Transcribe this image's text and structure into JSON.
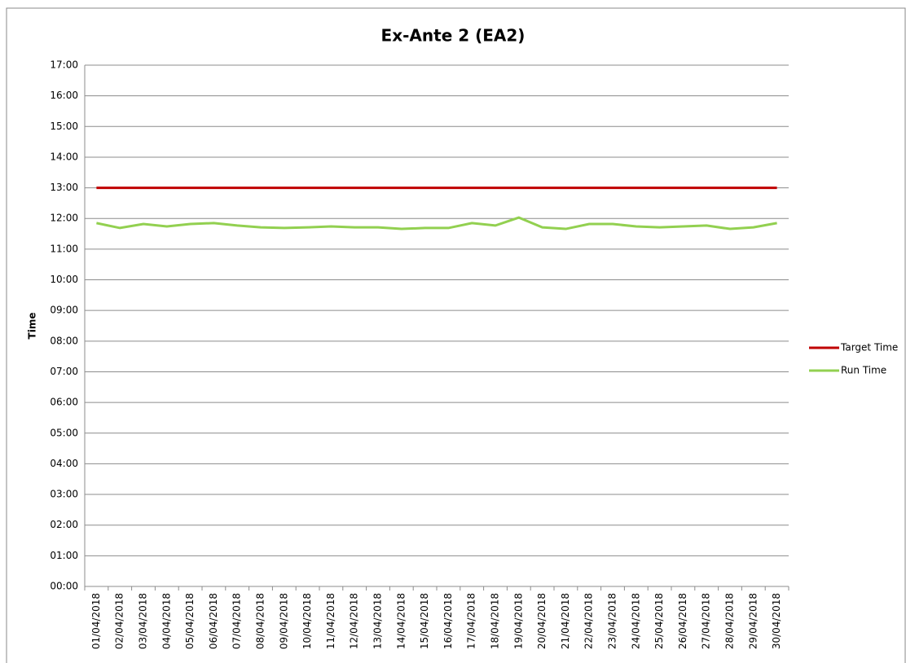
{
  "chart_data": {
    "type": "line",
    "title": "Ex-Ante 2 (EA2)",
    "y_label": "Time",
    "categories": [
      "01/04/2018",
      "02/04/2018",
      "03/04/2018",
      "04/04/2018",
      "05/04/2018",
      "06/04/2018",
      "07/04/2018",
      "08/04/2018",
      "09/04/2018",
      "10/04/2018",
      "11/04/2018",
      "12/04/2018",
      "13/04/2018",
      "14/04/2018",
      "15/04/2018",
      "16/04/2018",
      "17/04/2018",
      "18/04/2018",
      "19/04/2018",
      "20/04/2018",
      "21/04/2018",
      "22/04/2018",
      "23/04/2018",
      "24/04/2018",
      "25/04/2018",
      "26/04/2018",
      "27/04/2018",
      "28/04/2018",
      "29/04/2018",
      "30/04/2018"
    ],
    "series": [
      {
        "name": "Target Time",
        "color": "#c00000",
        "width": 3,
        "values": [
          13,
          13,
          13,
          13,
          13,
          13,
          13,
          13,
          13,
          13,
          13,
          13,
          13,
          13,
          13,
          13,
          13,
          13,
          13,
          13,
          13,
          13,
          13,
          13,
          13,
          13,
          13,
          13,
          13,
          13
        ]
      },
      {
        "name": "Run Time",
        "color": "#92d050",
        "width": 3,
        "values": [
          11.85,
          11.69,
          11.82,
          11.74,
          11.82,
          11.85,
          11.77,
          11.71,
          11.69,
          11.71,
          11.74,
          11.71,
          11.71,
          11.66,
          11.69,
          11.69,
          11.85,
          11.77,
          12.03,
          11.71,
          11.66,
          11.82,
          11.82,
          11.74,
          11.71,
          11.74,
          11.77,
          11.66,
          11.71,
          11.85
        ]
      }
    ],
    "ylim": [
      0,
      17
    ],
    "yticks": [
      {
        "value": 0,
        "label": "00:00"
      },
      {
        "value": 1,
        "label": "01:00"
      },
      {
        "value": 2,
        "label": "02:00"
      },
      {
        "value": 3,
        "label": "03:00"
      },
      {
        "value": 4,
        "label": "04:00"
      },
      {
        "value": 5,
        "label": "05:00"
      },
      {
        "value": 6,
        "label": "06:00"
      },
      {
        "value": 7,
        "label": "07:00"
      },
      {
        "value": 8,
        "label": "08:00"
      },
      {
        "value": 9,
        "label": "09:00"
      },
      {
        "value": 10,
        "label": "10:00"
      },
      {
        "value": 11,
        "label": "11:00"
      },
      {
        "value": 12,
        "label": "12:00"
      },
      {
        "value": 13,
        "label": "13:00"
      },
      {
        "value": 14,
        "label": "14:00"
      },
      {
        "value": 15,
        "label": "15:00"
      },
      {
        "value": 16,
        "label": "16:00"
      },
      {
        "value": 17,
        "label": "17:00"
      }
    ],
    "grid": true,
    "legend": "right"
  }
}
